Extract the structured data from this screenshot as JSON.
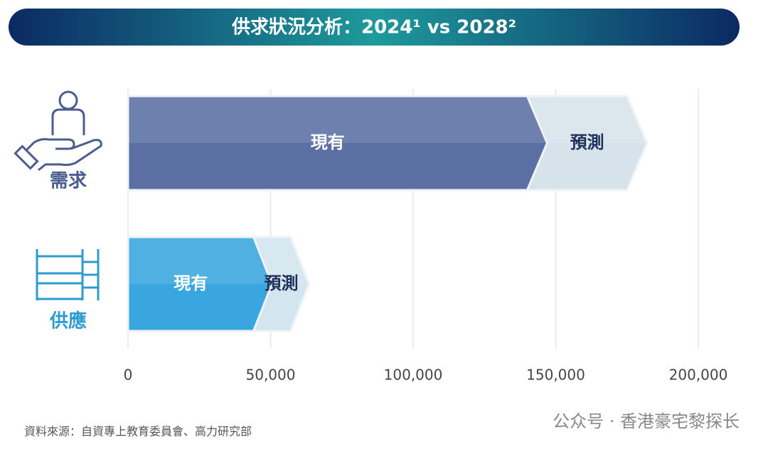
{
  "chart_data": {
    "type": "stacked-barh",
    "title": "供求狀況分析：2024¹ vs 2028²",
    "categories": [
      "需求",
      "供應"
    ],
    "category_colors": [
      "#4a5d8f",
      "#2e9bd0"
    ],
    "series": [
      {
        "name": "現有",
        "colors": [
          "#5b6fa3",
          "#39a6df"
        ],
        "values": [
          140000,
          44000
        ]
      },
      {
        "name": "預測",
        "colors": [
          "#d6e3eb",
          "#d3e5ee"
        ],
        "values": [
          35000,
          13000
        ]
      }
    ],
    "xlim": [
      0,
      200000
    ],
    "xticks": [
      0,
      {
        "value": 50000,
        "label": "50,000"
      },
      {
        "value": 100000,
        "label": "100,000"
      },
      {
        "value": 150000,
        "label": "150,000"
      },
      {
        "value": 200000,
        "label": "200,000"
      }
    ],
    "grid": true,
    "source": "資料來源：自資專上教育委員會、高力研究部",
    "watermark": "公众号 · 香港豪宅黎探长"
  }
}
